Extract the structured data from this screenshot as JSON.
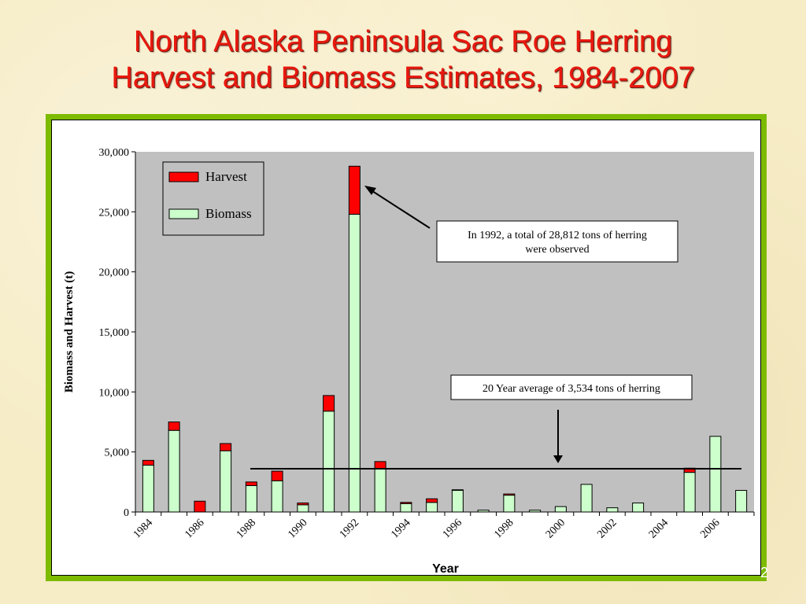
{
  "slide": {
    "title_line1": "North Alaska Peninsula Sac Roe Herring",
    "title_line2": "Harvest and Biomass Estimates, 1984-2007",
    "page_number": "2"
  },
  "colors": {
    "title": "#e8190f",
    "frame": "#7dbb00",
    "plot_bg": "#c0c0c0",
    "harvest": "#ff0000",
    "biomass": "#ccffcc"
  },
  "chart_data": {
    "type": "bar",
    "stacked": true,
    "title": "",
    "xlabel": "Year",
    "ylabel": "Biomass and Harvest (t)",
    "ylim": [
      0,
      30000
    ],
    "yticks": [
      0,
      5000,
      10000,
      15000,
      20000,
      25000,
      30000
    ],
    "ytick_labels": [
      "0",
      "5,000",
      "10,000",
      "15,000",
      "20,000",
      "25,000",
      "30,000"
    ],
    "categories": [
      1984,
      1985,
      1986,
      1987,
      1988,
      1989,
      1990,
      1991,
      1992,
      1993,
      1994,
      1995,
      1996,
      1997,
      1998,
      1999,
      2000,
      2001,
      2002,
      2003,
      2004,
      2005,
      2006,
      2007
    ],
    "xtick_labels": [
      "1984",
      "1986",
      "1988",
      "1990",
      "1992",
      "1994",
      "1996",
      "1998",
      "2000",
      "2002",
      "2004",
      "2006"
    ],
    "series": [
      {
        "name": "Biomass",
        "values": [
          3900,
          6800,
          0,
          5100,
          2200,
          2600,
          600,
          8400,
          24800,
          3600,
          700,
          800,
          1800,
          150,
          1400,
          150,
          450,
          2300,
          350,
          750,
          0,
          3300,
          6300,
          1800
        ]
      },
      {
        "name": "Harvest",
        "values": [
          400,
          700,
          900,
          600,
          300,
          800,
          150,
          1300,
          4000,
          600,
          100,
          300,
          50,
          0,
          100,
          0,
          0,
          0,
          0,
          0,
          0,
          350,
          0,
          0
        ]
      }
    ],
    "legend": {
      "position": "top-left",
      "entries": [
        "Harvest",
        "Biomass"
      ]
    },
    "grid": false,
    "annotations": [
      {
        "text": "In 1992, a total of 28,812 tons of herring were observed",
        "line1": "In 1992, a total of 28,812 tons of herring",
        "line2": "were observed",
        "target_year": 1992,
        "target_value": 28812
      },
      {
        "text": "20 Year average of 3,534 tons of herring",
        "reference_value": 3534
      }
    ]
  }
}
